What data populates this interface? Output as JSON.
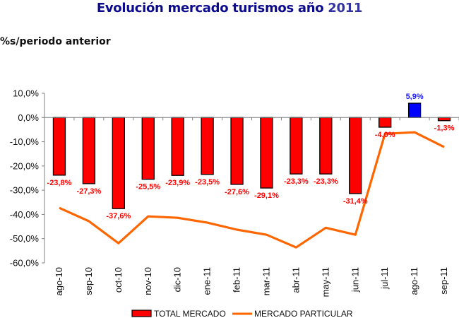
{
  "chart_data": {
    "type": "bar",
    "title": "Evolución mercado turismos año",
    "title_year": "2011",
    "subtitle": "%s/periodo anterior",
    "xlabel": "",
    "ylabel": "",
    "ylim": [
      -60,
      10
    ],
    "yticks": [
      10,
      0,
      -10,
      -20,
      -30,
      -40,
      -50,
      -60
    ],
    "ytick_labels": [
      "10,0%",
      "0,0%",
      "-10,0%",
      "-20,0%",
      "-30,0%",
      "-40,0%",
      "-50,0%",
      "-60,0%"
    ],
    "categories": [
      "ago-10",
      "sep-10",
      "oct-10",
      "nov-10",
      "dic-10",
      "ene-11",
      "feb-11",
      "mar-11",
      "abr-11",
      "may-11",
      "jun-11",
      "jul-11",
      "ago-11",
      "sep-11"
    ],
    "series": [
      {
        "name": "TOTAL MERCADO",
        "type": "bar",
        "color": "#ff0000",
        "positive_color": "#0000ff",
        "values": [
          -23.8,
          -27.3,
          -37.6,
          -25.5,
          -23.9,
          -23.5,
          -27.6,
          -29.1,
          -23.3,
          -23.3,
          -31.4,
          -4.0,
          5.9,
          -1.3
        ],
        "labels": [
          "-23,8%",
          "-27,3%",
          "-37,6%",
          "-25,5%",
          "-23,9%",
          "-23,5%",
          "-27,6%",
          "-29,1%",
          "-23,3%",
          "-23,3%",
          "-31,4%",
          "-4,0%",
          "5,9%",
          "-1,3%"
        ]
      },
      {
        "name": "MERCADO PARTICULAR",
        "type": "line",
        "color": "#ff6600",
        "values": [
          -37.3,
          -42.8,
          -51.9,
          -40.8,
          -41.4,
          -43.4,
          -46.3,
          -48.4,
          -53.6,
          -45.5,
          -48.4,
          -6.7,
          -6.1,
          -12.2
        ]
      }
    ],
    "legend": {
      "position": "bottom",
      "entries": [
        "TOTAL MERCADO",
        "MERCADO PARTICULAR"
      ]
    },
    "grid": false
  }
}
